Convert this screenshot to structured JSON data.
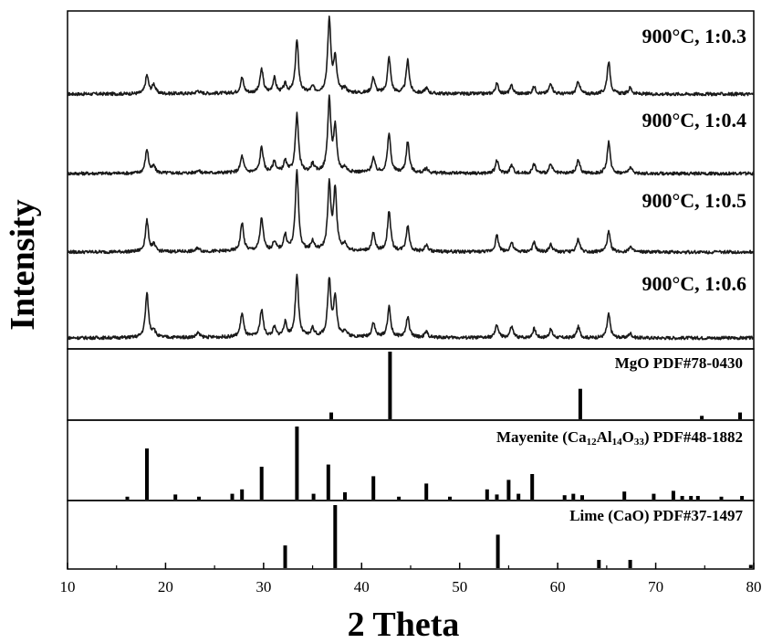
{
  "chart_data": {
    "type": "line",
    "xlabel": "2 Theta",
    "ylabel": "Intensity",
    "xlim": [
      10,
      80
    ],
    "xticks": [
      "10",
      "20",
      "30",
      "40",
      "50",
      "60",
      "70",
      "80"
    ],
    "colors": {
      "line": "#1a1a1a",
      "axis": "#000000"
    },
    "series": [
      {
        "name": "900°C, 1:0.3",
        "peaks": [
          {
            "x": 18.1,
            "h": 0.2
          },
          {
            "x": 18.8,
            "h": 0.1
          },
          {
            "x": 23.3,
            "h": 0.03
          },
          {
            "x": 27.8,
            "h": 0.17
          },
          {
            "x": 29.8,
            "h": 0.26
          },
          {
            "x": 31.1,
            "h": 0.16
          },
          {
            "x": 32.2,
            "h": 0.09
          },
          {
            "x": 33.4,
            "h": 0.57
          },
          {
            "x": 35.0,
            "h": 0.06
          },
          {
            "x": 36.7,
            "h": 0.8
          },
          {
            "x": 37.3,
            "h": 0.36
          },
          {
            "x": 38.3,
            "h": 0.05
          },
          {
            "x": 41.2,
            "h": 0.17
          },
          {
            "x": 42.8,
            "h": 0.39
          },
          {
            "x": 44.7,
            "h": 0.36
          },
          {
            "x": 46.6,
            "h": 0.06
          },
          {
            "x": 53.8,
            "h": 0.11
          },
          {
            "x": 55.3,
            "h": 0.09
          },
          {
            "x": 57.6,
            "h": 0.08
          },
          {
            "x": 59.3,
            "h": 0.12
          },
          {
            "x": 62.1,
            "h": 0.14
          },
          {
            "x": 65.2,
            "h": 0.36
          },
          {
            "x": 67.4,
            "h": 0.07
          }
        ]
      },
      {
        "name": "900°C, 1:0.4",
        "peaks": [
          {
            "x": 18.1,
            "h": 0.26
          },
          {
            "x": 18.8,
            "h": 0.07
          },
          {
            "x": 23.3,
            "h": 0.03
          },
          {
            "x": 27.8,
            "h": 0.18
          },
          {
            "x": 29.8,
            "h": 0.28
          },
          {
            "x": 31.1,
            "h": 0.12
          },
          {
            "x": 32.2,
            "h": 0.12
          },
          {
            "x": 33.4,
            "h": 0.63
          },
          {
            "x": 35.0,
            "h": 0.09
          },
          {
            "x": 36.7,
            "h": 0.79
          },
          {
            "x": 37.3,
            "h": 0.47
          },
          {
            "x": 38.3,
            "h": 0.05
          },
          {
            "x": 41.2,
            "h": 0.16
          },
          {
            "x": 42.8,
            "h": 0.43
          },
          {
            "x": 44.7,
            "h": 0.34
          },
          {
            "x": 46.6,
            "h": 0.05
          },
          {
            "x": 53.8,
            "h": 0.14
          },
          {
            "x": 55.3,
            "h": 0.09
          },
          {
            "x": 57.6,
            "h": 0.1
          },
          {
            "x": 59.3,
            "h": 0.1
          },
          {
            "x": 62.1,
            "h": 0.15
          },
          {
            "x": 65.2,
            "h": 0.34
          },
          {
            "x": 67.4,
            "h": 0.07
          }
        ]
      },
      {
        "name": "900°C, 1:0.5",
        "peaks": [
          {
            "x": 18.1,
            "h": 0.34
          },
          {
            "x": 18.8,
            "h": 0.07
          },
          {
            "x": 23.3,
            "h": 0.04
          },
          {
            "x": 27.8,
            "h": 0.31
          },
          {
            "x": 29.8,
            "h": 0.36
          },
          {
            "x": 31.1,
            "h": 0.1
          },
          {
            "x": 32.2,
            "h": 0.17
          },
          {
            "x": 33.4,
            "h": 0.88
          },
          {
            "x": 35.0,
            "h": 0.1
          },
          {
            "x": 36.7,
            "h": 0.71
          },
          {
            "x": 37.3,
            "h": 0.66
          },
          {
            "x": 38.3,
            "h": 0.07
          },
          {
            "x": 41.2,
            "h": 0.19
          },
          {
            "x": 42.8,
            "h": 0.44
          },
          {
            "x": 44.7,
            "h": 0.28
          },
          {
            "x": 46.6,
            "h": 0.07
          },
          {
            "x": 53.8,
            "h": 0.18
          },
          {
            "x": 55.3,
            "h": 0.1
          },
          {
            "x": 57.6,
            "h": 0.1
          },
          {
            "x": 59.3,
            "h": 0.08
          },
          {
            "x": 62.1,
            "h": 0.14
          },
          {
            "x": 65.2,
            "h": 0.22
          },
          {
            "x": 67.4,
            "h": 0.06
          }
        ]
      },
      {
        "name": "900°C, 1:0.6",
        "peaks": [
          {
            "x": 18.1,
            "h": 0.48
          },
          {
            "x": 18.8,
            "h": 0.08
          },
          {
            "x": 23.3,
            "h": 0.05
          },
          {
            "x": 27.8,
            "h": 0.26
          },
          {
            "x": 29.8,
            "h": 0.3
          },
          {
            "x": 31.1,
            "h": 0.1
          },
          {
            "x": 32.2,
            "h": 0.15
          },
          {
            "x": 33.4,
            "h": 0.66
          },
          {
            "x": 35.0,
            "h": 0.09
          },
          {
            "x": 36.7,
            "h": 0.62
          },
          {
            "x": 37.3,
            "h": 0.42
          },
          {
            "x": 38.3,
            "h": 0.07
          },
          {
            "x": 41.2,
            "h": 0.16
          },
          {
            "x": 42.8,
            "h": 0.33
          },
          {
            "x": 44.7,
            "h": 0.22
          },
          {
            "x": 46.6,
            "h": 0.06
          },
          {
            "x": 53.8,
            "h": 0.14
          },
          {
            "x": 55.3,
            "h": 0.12
          },
          {
            "x": 57.6,
            "h": 0.1
          },
          {
            "x": 59.3,
            "h": 0.09
          },
          {
            "x": 62.1,
            "h": 0.12
          },
          {
            "x": 65.2,
            "h": 0.26
          },
          {
            "x": 67.4,
            "h": 0.05
          }
        ]
      }
    ],
    "references": [
      {
        "label": "MgO PDF#78-0430",
        "sticks": [
          {
            "x": 36.9,
            "i": 0.1
          },
          {
            "x": 42.9,
            "i": 1.0
          },
          {
            "x": 62.3,
            "i": 0.45
          },
          {
            "x": 74.7,
            "i": 0.05
          },
          {
            "x": 78.6,
            "i": 0.1
          }
        ]
      },
      {
        "label": "Mayenite (Ca12Al14O33) PDF#48-1882",
        "label_parts": {
          "a": "Mayenite (Ca",
          "n1": "12",
          "b": "Al",
          "n2": "14",
          "c": "O",
          "n3": "33",
          "d": ") PDF#48-1882"
        },
        "sticks": [
          {
            "x": 16.1,
            "i": 0.04
          },
          {
            "x": 18.1,
            "i": 0.7
          },
          {
            "x": 21.0,
            "i": 0.07
          },
          {
            "x": 23.4,
            "i": 0.04
          },
          {
            "x": 26.8,
            "i": 0.08
          },
          {
            "x": 27.8,
            "i": 0.14
          },
          {
            "x": 29.8,
            "i": 0.45
          },
          {
            "x": 33.4,
            "i": 1.0
          },
          {
            "x": 35.1,
            "i": 0.08
          },
          {
            "x": 36.6,
            "i": 0.48
          },
          {
            "x": 38.3,
            "i": 0.1
          },
          {
            "x": 41.2,
            "i": 0.32
          },
          {
            "x": 43.8,
            "i": 0.04
          },
          {
            "x": 46.6,
            "i": 0.22
          },
          {
            "x": 49.0,
            "i": 0.04
          },
          {
            "x": 52.8,
            "i": 0.14
          },
          {
            "x": 53.8,
            "i": 0.07
          },
          {
            "x": 55.0,
            "i": 0.27
          },
          {
            "x": 56.0,
            "i": 0.08
          },
          {
            "x": 57.4,
            "i": 0.35
          },
          {
            "x": 60.7,
            "i": 0.06
          },
          {
            "x": 61.6,
            "i": 0.08
          },
          {
            "x": 62.5,
            "i": 0.06
          },
          {
            "x": 66.8,
            "i": 0.11
          },
          {
            "x": 69.8,
            "i": 0.08
          },
          {
            "x": 71.8,
            "i": 0.12
          },
          {
            "x": 72.7,
            "i": 0.05
          },
          {
            "x": 73.6,
            "i": 0.05
          },
          {
            "x": 74.3,
            "i": 0.05
          },
          {
            "x": 76.7,
            "i": 0.04
          },
          {
            "x": 78.8,
            "i": 0.05
          }
        ]
      },
      {
        "label": "Lime (CaO) PDF#37-1497",
        "sticks": [
          {
            "x": 32.2,
            "i": 0.36
          },
          {
            "x": 37.3,
            "i": 1.0
          },
          {
            "x": 53.9,
            "i": 0.53
          },
          {
            "x": 64.2,
            "i": 0.13
          },
          {
            "x": 67.4,
            "i": 0.13
          },
          {
            "x": 79.7,
            "i": 0.05
          }
        ]
      }
    ]
  }
}
